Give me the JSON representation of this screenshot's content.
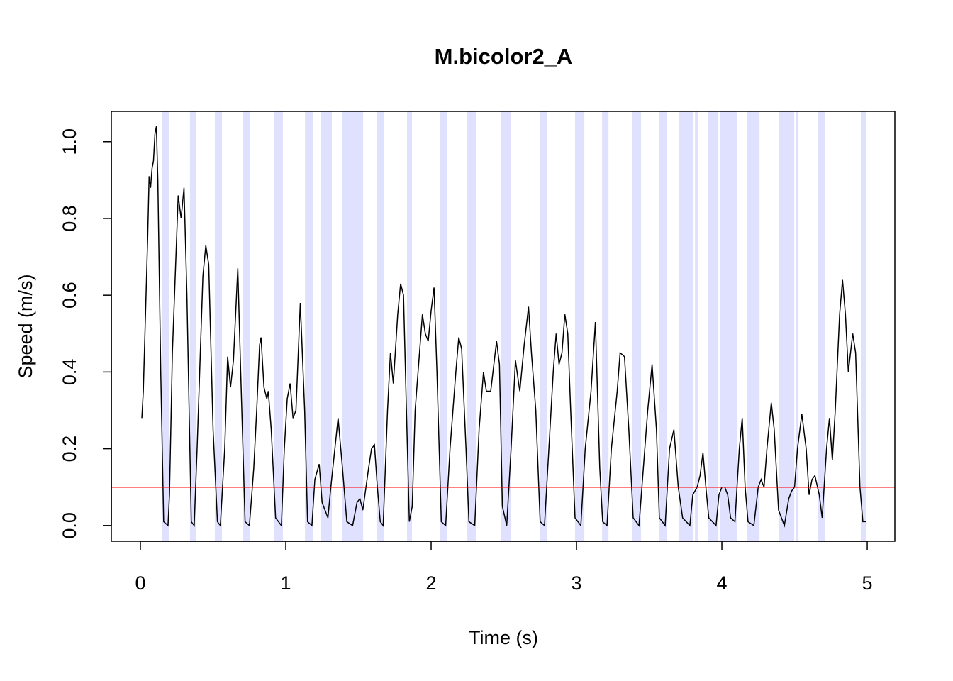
{
  "chart_data": {
    "type": "line",
    "title": "M.bicolor2_A",
    "x_label": "Time (s)",
    "y_label": "Speed (m/s)",
    "xlim": [
      -0.2,
      5.19
    ],
    "ylim": [
      -0.041,
      1.079
    ],
    "xticks": [
      0,
      1,
      2,
      3,
      4,
      5
    ],
    "yticks": [
      {
        "value": 0,
        "label": "0.0"
      },
      0.2,
      0.4,
      0.6,
      0.8,
      {
        "value": 1,
        "label": "1.0"
      }
    ],
    "threshold": 0.1,
    "threshold_color": "#ff0000",
    "band_color": "#e0e0ff",
    "shaded_intervals": [
      [
        0.151,
        0.2
      ],
      [
        0.341,
        0.38
      ],
      [
        0.512,
        0.561
      ],
      [
        0.707,
        0.756
      ],
      [
        0.922,
        0.98
      ],
      [
        1.132,
        1.19
      ],
      [
        1.239,
        1.317
      ],
      [
        1.39,
        1.532
      ],
      [
        1.629,
        1.673
      ],
      [
        1.834,
        1.868
      ],
      [
        2.063,
        2.107
      ],
      [
        2.249,
        2.312
      ],
      [
        2.483,
        2.546
      ],
      [
        2.751,
        2.795
      ],
      [
        2.99,
        3.054
      ],
      [
        3.176,
        3.22
      ],
      [
        3.385,
        3.444
      ],
      [
        3.566,
        3.62
      ],
      [
        3.702,
        3.805
      ],
      [
        3.815,
        3.839
      ],
      [
        3.902,
        3.976
      ],
      [
        3.99,
        4.107
      ],
      [
        4.171,
        4.259
      ],
      [
        4.39,
        4.498
      ],
      [
        4.507,
        4.527
      ],
      [
        4.663,
        4.707
      ],
      [
        4.956,
        4.995
      ]
    ],
    "series": [
      {
        "color": "#000000",
        "x": [
          0.01,
          0.02,
          0.05,
          0.06,
          0.07,
          0.08,
          0.09,
          0.1,
          0.11,
          0.12,
          0.14,
          0.16,
          0.19,
          0.2,
          0.22,
          0.26,
          0.28,
          0.3,
          0.32,
          0.35,
          0.37,
          0.39,
          0.43,
          0.45,
          0.47,
          0.5,
          0.53,
          0.55,
          0.58,
          0.6,
          0.62,
          0.64,
          0.67,
          0.69,
          0.72,
          0.75,
          0.78,
          0.8,
          0.82,
          0.83,
          0.85,
          0.87,
          0.88,
          0.9,
          0.93,
          0.97,
          0.99,
          1.01,
          1.03,
          1.05,
          1.07,
          1.1,
          1.13,
          1.15,
          1.18,
          1.2,
          1.23,
          1.25,
          1.29,
          1.31,
          1.36,
          1.39,
          1.42,
          1.46,
          1.49,
          1.51,
          1.53,
          1.57,
          1.59,
          1.61,
          1.63,
          1.65,
          1.67,
          1.7,
          1.72,
          1.74,
          1.77,
          1.79,
          1.81,
          1.83,
          1.85,
          1.87,
          1.89,
          1.92,
          1.94,
          1.96,
          1.98,
          2.0,
          2.02,
          2.04,
          2.07,
          2.1,
          2.13,
          2.17,
          2.19,
          2.21,
          2.24,
          2.26,
          2.3,
          2.33,
          2.36,
          2.38,
          2.41,
          2.45,
          2.47,
          2.49,
          2.52,
          2.55,
          2.58,
          2.61,
          2.64,
          2.67,
          2.69,
          2.72,
          2.75,
          2.78,
          2.81,
          2.84,
          2.86,
          2.88,
          2.9,
          2.92,
          2.94,
          2.96,
          2.99,
          3.03,
          3.06,
          3.1,
          3.13,
          3.16,
          3.18,
          3.21,
          3.24,
          3.28,
          3.3,
          3.33,
          3.36,
          3.39,
          3.43,
          3.46,
          3.49,
          3.52,
          3.55,
          3.57,
          3.61,
          3.64,
          3.67,
          3.7,
          3.73,
          3.78,
          3.8,
          3.83,
          3.85,
          3.87,
          3.89,
          3.91,
          3.96,
          3.98,
          4.0,
          4.02,
          4.04,
          4.06,
          4.09,
          4.12,
          4.14,
          4.16,
          4.18,
          4.22,
          4.25,
          4.27,
          4.29,
          4.31,
          4.34,
          4.36,
          4.39,
          4.43,
          4.46,
          4.48,
          4.5,
          4.52,
          4.55,
          4.58,
          4.6,
          4.62,
          4.64,
          4.67,
          4.69,
          4.72,
          4.74,
          4.76,
          4.78,
          4.81,
          4.83,
          4.85,
          4.87,
          4.9,
          4.92,
          4.95,
          4.97,
          4.99
        ],
        "values": [
          0.28,
          0.35,
          0.75,
          0.91,
          0.88,
          0.93,
          0.95,
          1.02,
          1.04,
          0.9,
          0.4,
          0.01,
          0.0,
          0.08,
          0.45,
          0.86,
          0.8,
          0.88,
          0.6,
          0.01,
          0.0,
          0.2,
          0.65,
          0.73,
          0.68,
          0.25,
          0.01,
          0.0,
          0.2,
          0.44,
          0.36,
          0.43,
          0.67,
          0.4,
          0.01,
          0.0,
          0.15,
          0.3,
          0.47,
          0.49,
          0.36,
          0.33,
          0.35,
          0.25,
          0.02,
          0.0,
          0.2,
          0.33,
          0.37,
          0.28,
          0.3,
          0.58,
          0.3,
          0.01,
          0.0,
          0.12,
          0.16,
          0.06,
          0.02,
          0.1,
          0.28,
          0.15,
          0.01,
          0.0,
          0.06,
          0.07,
          0.04,
          0.15,
          0.2,
          0.21,
          0.1,
          0.01,
          0.0,
          0.3,
          0.45,
          0.37,
          0.55,
          0.63,
          0.6,
          0.3,
          0.01,
          0.05,
          0.3,
          0.45,
          0.55,
          0.5,
          0.48,
          0.56,
          0.62,
          0.4,
          0.01,
          0.0,
          0.2,
          0.4,
          0.49,
          0.46,
          0.2,
          0.01,
          0.0,
          0.25,
          0.4,
          0.35,
          0.35,
          0.48,
          0.42,
          0.05,
          0.0,
          0.2,
          0.43,
          0.35,
          0.47,
          0.57,
          0.45,
          0.3,
          0.01,
          0.0,
          0.2,
          0.4,
          0.5,
          0.42,
          0.45,
          0.55,
          0.5,
          0.3,
          0.02,
          0.0,
          0.2,
          0.35,
          0.53,
          0.15,
          0.01,
          0.0,
          0.2,
          0.35,
          0.45,
          0.44,
          0.25,
          0.02,
          0.0,
          0.15,
          0.3,
          0.42,
          0.25,
          0.02,
          0.0,
          0.2,
          0.25,
          0.1,
          0.02,
          0.0,
          0.08,
          0.1,
          0.13,
          0.19,
          0.1,
          0.02,
          0.0,
          0.08,
          0.1,
          0.1,
          0.08,
          0.02,
          0.01,
          0.2,
          0.28,
          0.1,
          0.01,
          0.0,
          0.1,
          0.12,
          0.1,
          0.2,
          0.32,
          0.25,
          0.04,
          0.0,
          0.07,
          0.09,
          0.1,
          0.2,
          0.29,
          0.2,
          0.08,
          0.12,
          0.13,
          0.08,
          0.02,
          0.2,
          0.28,
          0.17,
          0.3,
          0.55,
          0.64,
          0.55,
          0.4,
          0.5,
          0.45,
          0.1,
          0.01,
          0.01
        ]
      }
    ]
  }
}
